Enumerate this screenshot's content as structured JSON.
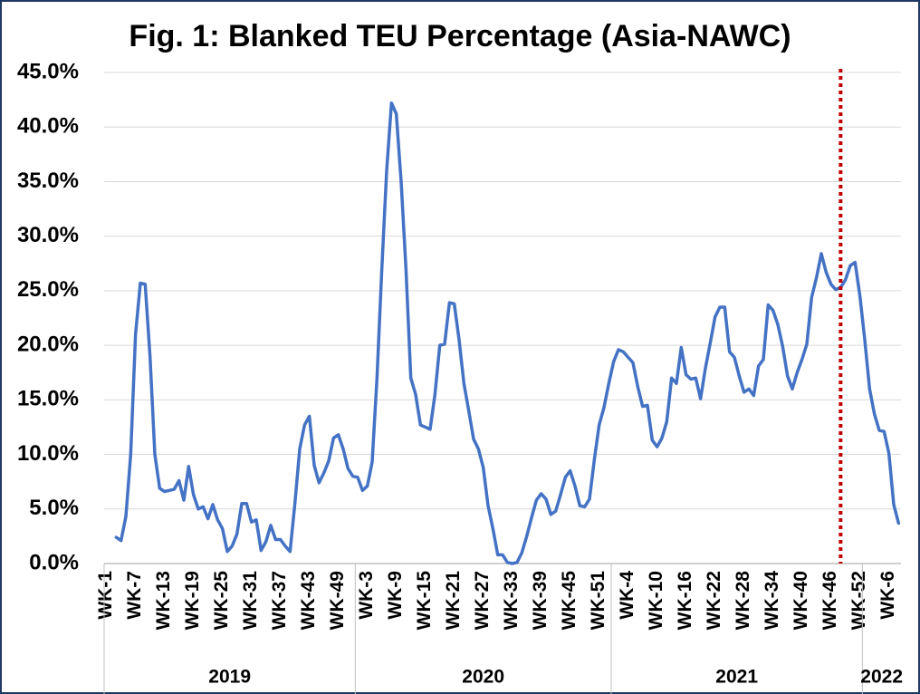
{
  "chart_data": {
    "type": "line",
    "title": "Fig. 1: Blanked TEU Percentage (Asia-NAWC)",
    "categories": [
      "WK-1",
      null,
      null,
      null,
      null,
      null,
      "WK-7",
      null,
      null,
      null,
      null,
      null,
      "WK-13",
      null,
      null,
      null,
      null,
      null,
      "WK-19",
      null,
      null,
      null,
      null,
      null,
      "WK-25",
      null,
      null,
      null,
      null,
      null,
      "WK-31",
      null,
      null,
      null,
      null,
      null,
      "WK-37",
      null,
      null,
      null,
      null,
      null,
      "WK-43",
      null,
      null,
      null,
      null,
      null,
      "WK-49",
      null,
      null,
      null,
      null,
      null,
      "WK-3",
      null,
      null,
      null,
      null,
      null,
      "WK-9",
      null,
      null,
      null,
      null,
      null,
      "WK-15",
      null,
      null,
      null,
      null,
      null,
      "WK-21",
      null,
      null,
      null,
      null,
      null,
      "WK-27",
      null,
      null,
      null,
      null,
      null,
      "WK-33",
      null,
      null,
      null,
      null,
      null,
      "WK-39",
      null,
      null,
      null,
      null,
      null,
      "WK-45",
      null,
      null,
      null,
      null,
      null,
      "WK-51",
      null,
      null,
      null,
      null,
      null,
      "WK-4",
      null,
      null,
      null,
      null,
      null,
      "WK-10",
      null,
      null,
      null,
      null,
      null,
      "WK-16",
      null,
      null,
      null,
      null,
      null,
      "WK-22",
      null,
      null,
      null,
      null,
      null,
      "WK-28",
      null,
      null,
      null,
      null,
      null,
      "WK-34",
      null,
      null,
      null,
      null,
      null,
      "WK-40",
      null,
      null,
      null,
      null,
      null,
      "WK-46",
      null,
      null,
      null,
      null,
      null,
      "WK-52",
      null,
      null,
      null,
      null,
      null,
      "WK-6",
      null,
      null
    ],
    "groups": [
      {
        "name": "2019",
        "weeks": 52
      },
      {
        "name": "2020",
        "weeks": 53
      },
      {
        "name": "2021",
        "weeks": 52
      },
      {
        "name": "2022",
        "weeks": 8
      }
    ],
    "series": [
      {
        "color": "#4472c4",
        "values": [
          null,
          null,
          2.4,
          2.1,
          4.3,
          10,
          21,
          25.7,
          25.6,
          19,
          10,
          6.9,
          6.6,
          6.7,
          6.8,
          7.6,
          5.8,
          8.9,
          6.3,
          5.0,
          5.2,
          4.1,
          5.4,
          4.0,
          3.2,
          1.1,
          1.6,
          2.7,
          5.5,
          5.5,
          3.8,
          4.0,
          1.2,
          2.0,
          3.5,
          2.2,
          2.2,
          1.6,
          1.1,
          5.5,
          10.5,
          12.7,
          13.5,
          9.0,
          7.4,
          8.3,
          9.4,
          11.5,
          11.8,
          10.5,
          8.7,
          8.0,
          7.9,
          6.7,
          7.1,
          9.3,
          17,
          27,
          36,
          42.2,
          41.2,
          35,
          27,
          17,
          15.5,
          12.7,
          12.5,
          12.3,
          15.5,
          20,
          20.1,
          23.9,
          23.8,
          20.5,
          16.5,
          14,
          11.4,
          10.5,
          8.8,
          5.3,
          3.2,
          0.8,
          0.8,
          0.1,
          0,
          0.1,
          1.0,
          2.5,
          4.2,
          5.8,
          6.4,
          5.9,
          4.5,
          4.8,
          6.3,
          7.9,
          8.5,
          7.1,
          5.3,
          5.2,
          5.9,
          9.5,
          12.7,
          14.3,
          16.5,
          18.5,
          19.6,
          19.4,
          18.9,
          18.4,
          16.2,
          14.4,
          14.5,
          11.3,
          10.7,
          11.5,
          13,
          17,
          16.5,
          19.8,
          17.3,
          16.9,
          17,
          15.1,
          17.9,
          20.2,
          22.6,
          23.5,
          23.5,
          19.4,
          18.9,
          17.2,
          15.7,
          16,
          15.4,
          18.1,
          18.7,
          23.7,
          23.2,
          21.9,
          19.9,
          17.2,
          16,
          17.5,
          18.7,
          20.1,
          24.4,
          26.2,
          28.4,
          26.7,
          25.6,
          25.1,
          25.3,
          26,
          27.3,
          27.6,
          24.5,
          20.5,
          16,
          13.7,
          12.2,
          12.1,
          10.1,
          5.4,
          3.7
        ]
      }
    ],
    "ylim": [
      0,
      45
    ],
    "yticks": [
      {
        "value": 0,
        "label": "0.0%"
      },
      {
        "value": 5,
        "label": "5.0%"
      },
      {
        "value": 10,
        "label": "10.0%"
      },
      {
        "value": 15,
        "label": "15.0%"
      },
      {
        "value": 20,
        "label": "20.0%"
      },
      {
        "value": 25,
        "label": "25.0%"
      },
      {
        "value": 30,
        "label": "30.0%"
      },
      {
        "value": 35,
        "label": "35.0%"
      },
      {
        "value": 40,
        "label": "40.0%"
      },
      {
        "value": 45,
        "label": "45.0%"
      }
    ],
    "grid": true,
    "reference_line": {
      "category": 152,
      "color": "#c00000"
    }
  }
}
